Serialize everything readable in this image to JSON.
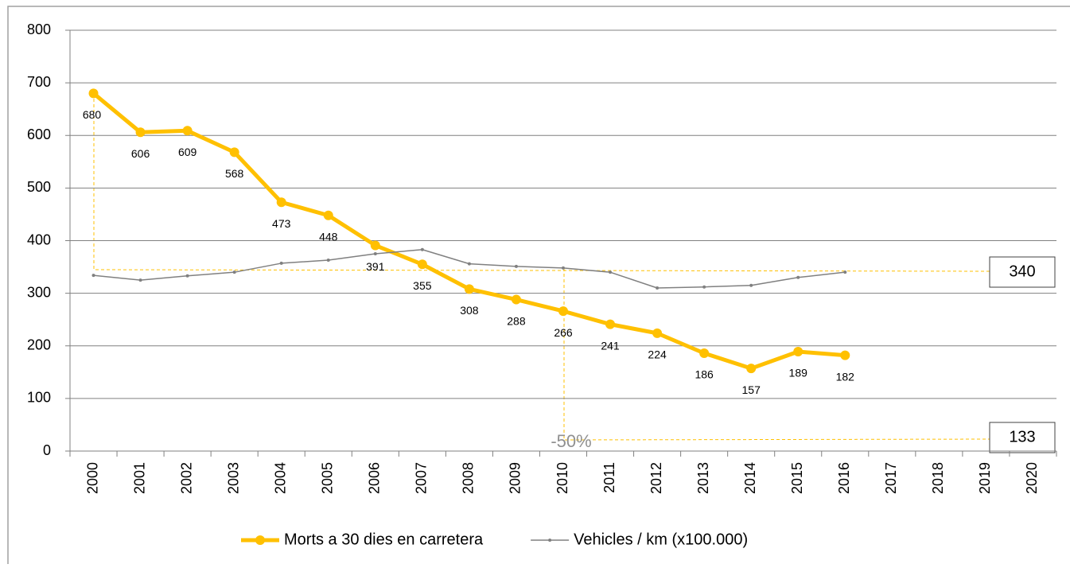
{
  "chart_data": {
    "type": "line",
    "categories": [
      "2000",
      "2001",
      "2002",
      "2003",
      "2004",
      "2005",
      "2006",
      "2007",
      "2008",
      "2009",
      "2010",
      "2011",
      "2012",
      "2013",
      "2014",
      "2015",
      "2016",
      "2017",
      "2018",
      "2019",
      "2020"
    ],
    "series": [
      {
        "name": "Morts a 30 dies en carretera",
        "color": "#ffc000",
        "values": [
          680,
          606,
          609,
          568,
          473,
          448,
          391,
          355,
          308,
          288,
          266,
          241,
          224,
          186,
          157,
          189,
          182,
          null,
          null,
          null,
          null
        ]
      },
      {
        "name": "Vehicles / km (x100.000)",
        "color": "#808080",
        "values": [
          334,
          325,
          333,
          340,
          357,
          363,
          375,
          383,
          356,
          351,
          348,
          340,
          310,
          312,
          315,
          330,
          340,
          null,
          null,
          null,
          null
        ]
      }
    ],
    "ylim": [
      0,
      800
    ],
    "yticks": [
      0,
      100,
      200,
      300,
      400,
      500,
      600,
      700,
      800
    ],
    "grid": true,
    "legend": "bottom",
    "annotations": [
      "340",
      "133",
      "-50%"
    ]
  }
}
